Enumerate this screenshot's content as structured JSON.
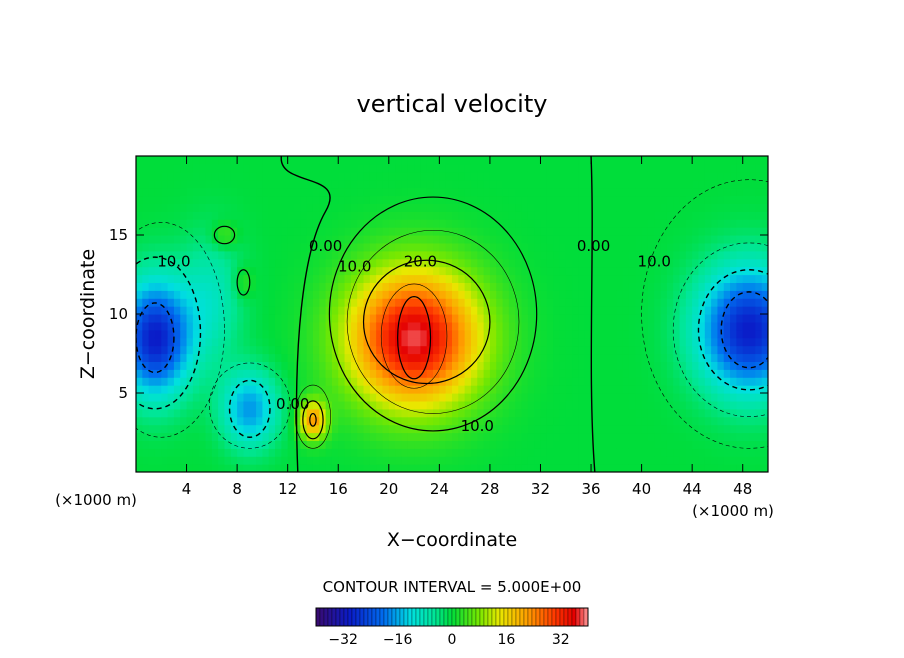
{
  "chart_data": {
    "type": "heatmap",
    "title": "vertical velocity",
    "xlabel": "X−coordinate",
    "ylabel": "Z−coordinate",
    "x_unit_left": "(×1000 m)",
    "x_unit_right": "(×1000 m)",
    "xlim": [
      0,
      50
    ],
    "ylim": [
      0,
      20
    ],
    "x_ticks": [
      4,
      8,
      12,
      16,
      20,
      24,
      28,
      32,
      36,
      40,
      44,
      48
    ],
    "y_ticks": [
      5,
      10,
      15
    ],
    "contour_interval_text": "CONTOUR INTERVAL = 5.000E+00",
    "contour_interval": 5.0,
    "colorbar": {
      "min": -40,
      "max": 40,
      "ticks": [
        -32,
        -16,
        0,
        16,
        32
      ]
    },
    "contour_labels": [
      {
        "text": "10.0",
        "x": 3,
        "y": 13
      },
      {
        "text": "0.00",
        "x": 15,
        "y": 14
      },
      {
        "text": "10.0",
        "x": 17.3,
        "y": 12.7
      },
      {
        "text": "20.0",
        "x": 22.5,
        "y": 13
      },
      {
        "text": "0.00",
        "x": 36.2,
        "y": 14
      },
      {
        "text": "10.0",
        "x": 41,
        "y": 13
      },
      {
        "text": "0.00",
        "x": 12.4,
        "y": 4
      },
      {
        "text": "10.0",
        "x": 27,
        "y": 2.6
      }
    ],
    "extrema": [
      {
        "name": "updraft",
        "x": 22,
        "y": 8.5,
        "value": 38
      },
      {
        "name": "small updraft",
        "x": 14,
        "y": 3.3,
        "value": 22
      },
      {
        "name": "left downdraft",
        "x": 1.5,
        "y": 8.5,
        "value": -30
      },
      {
        "name": "right downdraft",
        "x": 48.5,
        "y": 9,
        "value": -30
      },
      {
        "name": "lower-left downdraft",
        "x": 9,
        "y": 4,
        "value": -17
      },
      {
        "name": "small left upper blob",
        "x": 7,
        "y": 15,
        "value": 6
      },
      {
        "name": "small left mid blob",
        "x": 8.5,
        "y": 12,
        "value": 5
      }
    ],
    "colors": {
      "purple": "#3a0a6e",
      "blue": "#0a1cc8",
      "cyan": "#00e0e0",
      "green": "#00dd3a",
      "yellow": "#e8e800",
      "orange": "#ff8800",
      "red": "#e40000",
      "pink": "#ff9a9a"
    }
  }
}
